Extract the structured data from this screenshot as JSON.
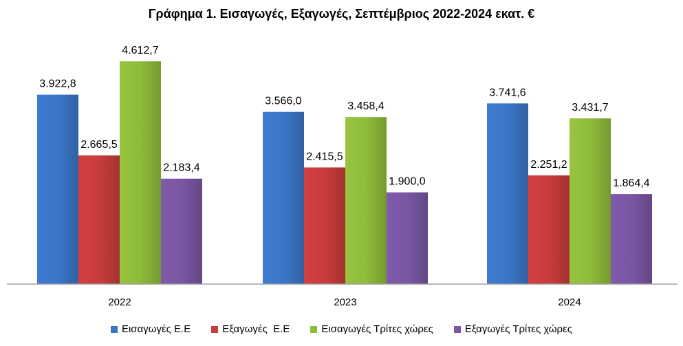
{
  "chart_data": {
    "type": "bar",
    "title": "Γράφημα 1. Εισαγωγές, Εξαγωγές, Σεπτέμβριος 2022-2024 εκατ. €",
    "categories": [
      "2022",
      "2023",
      "2024"
    ],
    "series": [
      {
        "name": "Εισαγωγές Ε.Ε",
        "color": "#3a76c8",
        "values": [
          3922.8,
          3566.0,
          3741.6
        ],
        "labels": [
          "3.922,8",
          "3.566,0",
          "3.741,6"
        ]
      },
      {
        "name": "Εξαγωγές  Ε.Ε",
        "color": "#c83c3c",
        "values": [
          2665.5,
          2415.5,
          2251.2
        ],
        "labels": [
          "2.665,5",
          "2.415,5",
          "2.251,2"
        ]
      },
      {
        "name": "Εισαγωγές Τρίτες χώρες",
        "color": "#8fbc3a",
        "values": [
          4612.7,
          3458.4,
          3431.7
        ],
        "labels": [
          "4.612,7",
          "3.458,4",
          "3.431,7"
        ]
      },
      {
        "name": "Εξαγωγές Τρίτες χώρες",
        "color": "#7a56a3",
        "values": [
          2183.4,
          1900.0,
          1864.4
        ],
        "labels": [
          "2.183,4",
          "1.900,0",
          "1.864,4"
        ]
      }
    ],
    "ylim": [
      0,
      5000
    ],
    "grid": false,
    "legend_position": "bottom"
  }
}
